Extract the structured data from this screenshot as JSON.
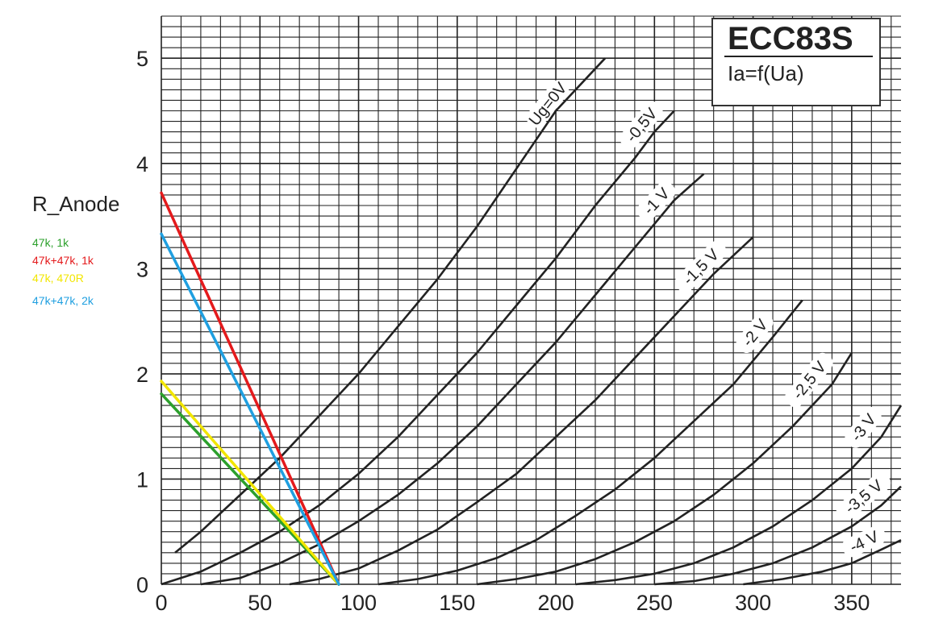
{
  "chart_data": {
    "type": "line",
    "title": "ECC83S",
    "subtitle": "Ia=f(Ua)",
    "xlabel": "",
    "ylabel": "",
    "xlim": [
      0,
      375
    ],
    "ylim": [
      0,
      5.4
    ],
    "grid": true,
    "x_ticks": [
      "0",
      "50",
      "100",
      "150",
      "200",
      "250",
      "300",
      "350"
    ],
    "x_tick_values": [
      0,
      50,
      100,
      150,
      200,
      250,
      300,
      350
    ],
    "y_ticks": [
      "0",
      "1",
      "2",
      "3",
      "4",
      "5"
    ],
    "y_tick_values": [
      0,
      1,
      2,
      3,
      4,
      5
    ],
    "series": [
      {
        "name": "Ug=0V",
        "points": [
          [
            7,
            0.3
          ],
          [
            20,
            0.5
          ],
          [
            40,
            0.85
          ],
          [
            60,
            1.2
          ],
          [
            80,
            1.6
          ],
          [
            100,
            2.0
          ],
          [
            120,
            2.45
          ],
          [
            140,
            2.9
          ],
          [
            160,
            3.4
          ],
          [
            180,
            3.95
          ],
          [
            200,
            4.5
          ],
          [
            225,
            5.0
          ]
        ]
      },
      {
        "name": "-0,5V",
        "points": [
          [
            0,
            0
          ],
          [
            20,
            0.12
          ],
          [
            40,
            0.3
          ],
          [
            60,
            0.5
          ],
          [
            80,
            0.75
          ],
          [
            100,
            1.05
          ],
          [
            120,
            1.4
          ],
          [
            140,
            1.8
          ],
          [
            160,
            2.2
          ],
          [
            180,
            2.65
          ],
          [
            200,
            3.1
          ],
          [
            220,
            3.6
          ],
          [
            240,
            4.05
          ],
          [
            250,
            4.3
          ],
          [
            260,
            4.5
          ]
        ]
      },
      {
        "name": "-1 V",
        "points": [
          [
            20,
            0
          ],
          [
            40,
            0.06
          ],
          [
            60,
            0.2
          ],
          [
            80,
            0.38
          ],
          [
            100,
            0.6
          ],
          [
            120,
            0.85
          ],
          [
            140,
            1.15
          ],
          [
            160,
            1.5
          ],
          [
            180,
            1.9
          ],
          [
            200,
            2.3
          ],
          [
            220,
            2.75
          ],
          [
            240,
            3.2
          ],
          [
            260,
            3.65
          ],
          [
            275,
            3.9
          ]
        ]
      },
      {
        "name": "-1,5 V",
        "points": [
          [
            65,
            0
          ],
          [
            80,
            0.05
          ],
          [
            100,
            0.15
          ],
          [
            120,
            0.32
          ],
          [
            140,
            0.52
          ],
          [
            160,
            0.78
          ],
          [
            180,
            1.05
          ],
          [
            200,
            1.4
          ],
          [
            220,
            1.75
          ],
          [
            240,
            2.15
          ],
          [
            260,
            2.55
          ],
          [
            280,
            2.95
          ],
          [
            300,
            3.3
          ]
        ]
      },
      {
        "name": "-2 V",
        "points": [
          [
            110,
            0
          ],
          [
            130,
            0.05
          ],
          [
            150,
            0.13
          ],
          [
            170,
            0.25
          ],
          [
            190,
            0.42
          ],
          [
            210,
            0.65
          ],
          [
            230,
            0.9
          ],
          [
            250,
            1.2
          ],
          [
            270,
            1.55
          ],
          [
            290,
            1.9
          ],
          [
            310,
            2.35
          ],
          [
            325,
            2.7
          ]
        ]
      },
      {
        "name": "-2,5 V",
        "points": [
          [
            160,
            0
          ],
          [
            180,
            0.05
          ],
          [
            200,
            0.12
          ],
          [
            220,
            0.24
          ],
          [
            240,
            0.4
          ],
          [
            260,
            0.6
          ],
          [
            280,
            0.85
          ],
          [
            300,
            1.15
          ],
          [
            320,
            1.5
          ],
          [
            340,
            1.9
          ],
          [
            350,
            2.2
          ]
        ]
      },
      {
        "name": "-3 V",
        "points": [
          [
            210,
            0
          ],
          [
            230,
            0.04
          ],
          [
            250,
            0.1
          ],
          [
            270,
            0.2
          ],
          [
            290,
            0.35
          ],
          [
            310,
            0.55
          ],
          [
            330,
            0.8
          ],
          [
            350,
            1.1
          ],
          [
            365,
            1.4
          ],
          [
            375,
            1.7
          ]
        ]
      },
      {
        "name": "-3,5 V",
        "points": [
          [
            250,
            0
          ],
          [
            270,
            0.03
          ],
          [
            290,
            0.1
          ],
          [
            310,
            0.2
          ],
          [
            330,
            0.35
          ],
          [
            350,
            0.55
          ],
          [
            365,
            0.75
          ],
          [
            375,
            0.93
          ]
        ]
      },
      {
        "name": "-4 V",
        "points": [
          [
            295,
            0
          ],
          [
            315,
            0.05
          ],
          [
            335,
            0.12
          ],
          [
            350,
            0.2
          ],
          [
            365,
            0.33
          ],
          [
            375,
            0.42
          ]
        ]
      }
    ],
    "load_lines_title": "R_Anode",
    "load_lines": [
      {
        "name": "47k, 1k",
        "color": "#2ca02c",
        "x": [
          0,
          90
        ],
        "y": [
          1.81,
          0
        ]
      },
      {
        "name": "47k+47k, 1k",
        "color": "#e41a1c",
        "x": [
          0,
          90
        ],
        "y": [
          3.72,
          0
        ]
      },
      {
        "name": "47k, 470R",
        "color": "#f2e600",
        "x": [
          0,
          90
        ],
        "y": [
          1.93,
          0
        ]
      },
      {
        "name": "47k+47k, 2k",
        "color": "#1f9fe0",
        "x": [
          0,
          90
        ],
        "y": [
          3.33,
          0
        ]
      }
    ]
  }
}
